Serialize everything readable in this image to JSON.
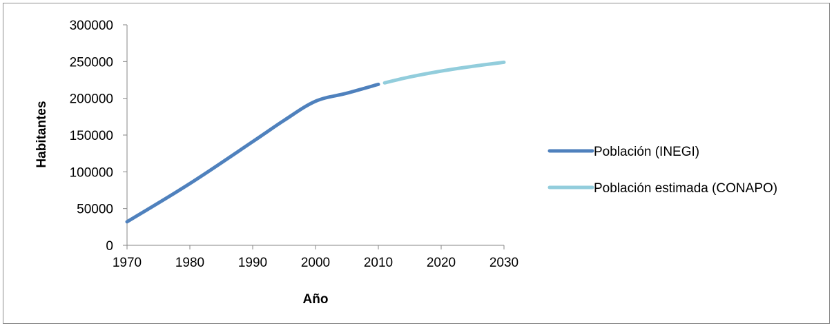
{
  "chart_data": {
    "type": "line",
    "xlabel": "Año",
    "ylabel": "Habitantes",
    "xlim": [
      1970,
      2030
    ],
    "ylim": [
      0,
      300000
    ],
    "x_ticks": [
      "1970",
      "1980",
      "1990",
      "2000",
      "2010",
      "2020",
      "2030"
    ],
    "y_ticks": [
      "0",
      "50000",
      "100000",
      "150000",
      "200000",
      "250000",
      "300000"
    ],
    "grid": false,
    "legend_position": "right",
    "series": [
      {
        "name": "Población (INEGI)",
        "color": "#4f81bd",
        "points": [
          [
            1970,
            32000
          ],
          [
            1980,
            84000
          ],
          [
            1990,
            141000
          ],
          [
            1995,
            170000
          ],
          [
            2000,
            196000
          ],
          [
            2005,
            207000
          ],
          [
            2010,
            219000
          ]
        ]
      },
      {
        "name": "Población estimada (CONAPO)",
        "color": "#92cddc",
        "points": [
          [
            2011,
            221000
          ],
          [
            2015,
            229000
          ],
          [
            2020,
            237000
          ],
          [
            2025,
            243500
          ],
          [
            2030,
            249000
          ]
        ]
      }
    ]
  }
}
